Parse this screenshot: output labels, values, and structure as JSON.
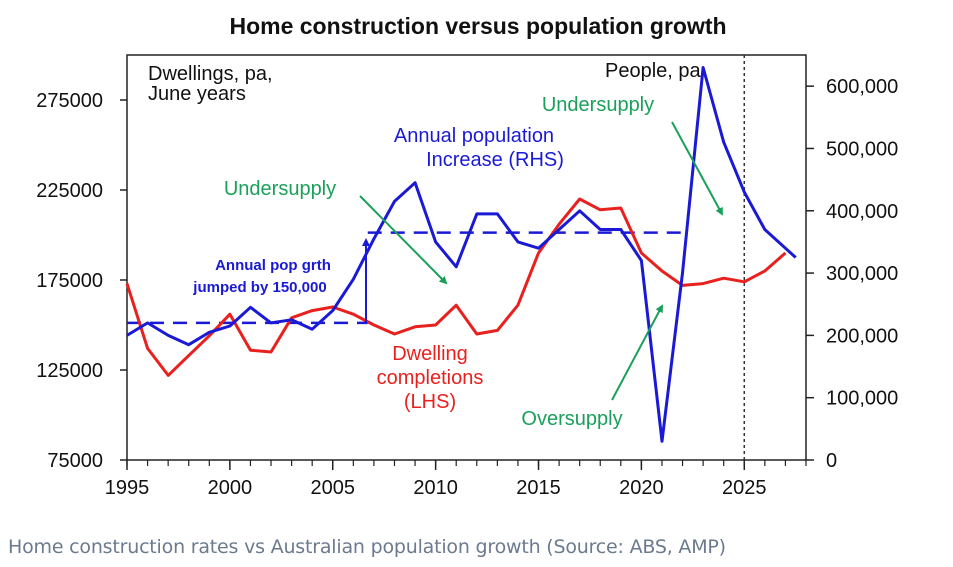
{
  "chart_data": {
    "type": "line",
    "title": "Home construction versus population growth",
    "x": [
      1995,
      1996,
      1997,
      1998,
      1999,
      2000,
      2001,
      2002,
      2003,
      2004,
      2005,
      2006,
      2007,
      2008,
      2009,
      2010,
      2011,
      2012,
      2013,
      2014,
      2015,
      2016,
      2017,
      2018,
      2019,
      2020,
      2021,
      2022,
      2023,
      2024,
      2025,
      2026,
      2027
    ],
    "xlim": [
      1995,
      2028
    ],
    "x_ticks": [
      "1995",
      "2000",
      "2005",
      "2010",
      "2015",
      "2020",
      "2025"
    ],
    "left_axis": {
      "label": "Dwellings, pa,\nJune years",
      "ylim": [
        75000,
        300000
      ],
      "ticks": [
        "75000",
        "125000",
        "175000",
        "225000",
        "275000"
      ]
    },
    "right_axis": {
      "label": "People, pa",
      "ylim": [
        0,
        650000
      ],
      "ticks": [
        "0",
        "100,000",
        "200,000",
        "300,000",
        "400,000",
        "500,000",
        "600,000"
      ]
    },
    "series": [
      {
        "name": "Dwelling completions (LHS)",
        "axis": "left",
        "color": "#e8211e",
        "x": [
          1995,
          1996,
          1997,
          1998,
          1999,
          2000,
          2001,
          2002,
          2003,
          2004,
          2005,
          2006,
          2007,
          2008,
          2009,
          2010,
          2011,
          2012,
          2013,
          2014,
          2015,
          2016,
          2017,
          2018,
          2019,
          2020,
          2021,
          2022,
          2023,
          2024,
          2025,
          2026,
          2027
        ],
        "values": [
          173000,
          137000,
          122000,
          133000,
          144000,
          156000,
          136000,
          135000,
          154000,
          158000,
          160000,
          156000,
          150000,
          145000,
          149000,
          150000,
          161000,
          145000,
          147000,
          161000,
          190000,
          206000,
          220000,
          214000,
          215000,
          190000,
          180000,
          172000,
          173000,
          176000,
          174000,
          180000,
          190000
        ]
      },
      {
        "name": "Annual population Increase (RHS)",
        "axis": "right",
        "color": "#1a1ad6",
        "x": [
          1995,
          1996,
          1997,
          1998,
          1999,
          2000,
          2001,
          2002,
          2003,
          2004,
          2005,
          2006,
          2007,
          2008,
          2009,
          2010,
          2011,
          2012,
          2013,
          2014,
          2015,
          2016,
          2017,
          2018,
          2019,
          2020,
          2021,
          2022,
          2023,
          2024,
          2025,
          2026,
          2027,
          2027.5
        ],
        "values": [
          200000,
          220000,
          200000,
          185000,
          205000,
          215000,
          245000,
          220000,
          225000,
          210000,
          240000,
          290000,
          355000,
          415000,
          445000,
          350000,
          310000,
          395000,
          395000,
          350000,
          340000,
          370000,
          400000,
          370000,
          370000,
          320000,
          30000,
          300000,
          630000,
          510000,
          430000,
          370000,
          340000,
          325000
        ]
      }
    ],
    "reference_lines": [
      {
        "name": "pop-growth-before-2007",
        "axis": "right",
        "x": [
          1995,
          2006.7
        ],
        "value": 220000,
        "color": "#1a1ad6"
      },
      {
        "name": "pop-growth-after-2007",
        "axis": "right",
        "x": [
          2006.7,
          2022
        ],
        "value": 365000,
        "color": "#1a1ad6"
      },
      {
        "name": "forecast-divider",
        "axis": "vertical",
        "x_value": 2025
      }
    ],
    "annotations": [
      {
        "text": "Annual population",
        "color": "#1a1ad6"
      },
      {
        "text": "Increase (RHS)",
        "color": "#1a1ad6"
      },
      {
        "text": "Dwelling",
        "color": "#e8211e"
      },
      {
        "text": "completions",
        "color": "#e8211e"
      },
      {
        "text": "(LHS)",
        "color": "#e8211e"
      },
      {
        "text": "Undersupply",
        "color": "#1aa05a"
      },
      {
        "text": "Undersupply",
        "color": "#1aa05a"
      },
      {
        "text": "Oversupply",
        "color": "#1aa05a"
      },
      {
        "text": "Annual pop grth",
        "color": "#1a1ad6"
      },
      {
        "text": "jumped by 150,000",
        "color": "#1a1ad6"
      }
    ]
  },
  "caption": "Home construction rates vs Australian population growth (Source: ABS, AMP)"
}
